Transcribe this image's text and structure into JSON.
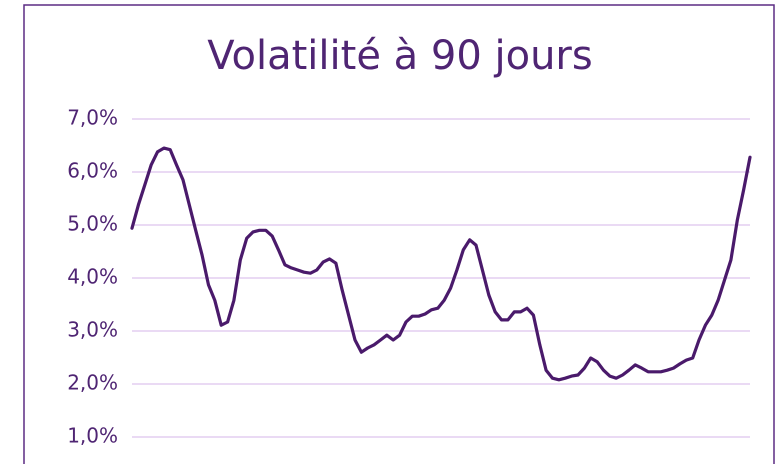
{
  "chart_data": {
    "type": "line",
    "title": "Volatilité à 90 jours",
    "color": "#4a1a6b",
    "grid": true,
    "ylim": [
      0.5,
      7.2
    ],
    "yticks": [
      {
        "value": 1,
        "label": "1,0%"
      },
      {
        "value": 2,
        "label": "2,0%"
      },
      {
        "value": 3,
        "label": "3,0%"
      },
      {
        "value": 4,
        "label": "4,0%"
      },
      {
        "value": 5,
        "label": "5,0%"
      },
      {
        "value": 6,
        "label": "6,0%"
      },
      {
        "value": 7,
        "label": "7,0%"
      }
    ],
    "values": [
      4.94,
      5.38,
      5.75,
      6.13,
      6.38,
      6.45,
      6.42,
      6.13,
      5.85,
      5.38,
      4.9,
      4.43,
      3.87,
      3.58,
      3.11,
      3.17,
      3.58,
      4.34,
      4.75,
      4.87,
      4.9,
      4.9,
      4.79,
      4.53,
      4.25,
      4.19,
      4.15,
      4.11,
      4.09,
      4.15,
      4.3,
      4.36,
      4.28,
      3.77,
      3.3,
      2.83,
      2.6,
      2.68,
      2.74,
      2.83,
      2.92,
      2.83,
      2.92,
      3.17,
      3.28,
      3.28,
      3.32,
      3.4,
      3.43,
      3.58,
      3.81,
      4.15,
      4.53,
      4.72,
      4.62,
      4.15,
      3.68,
      3.36,
      3.21,
      3.21,
      3.36,
      3.36,
      3.43,
      3.3,
      2.74,
      2.26,
      2.11,
      2.08,
      2.11,
      2.15,
      2.17,
      2.3,
      2.49,
      2.42,
      2.26,
      2.15,
      2.11,
      2.17,
      2.26,
      2.36,
      2.3,
      2.23,
      2.23,
      2.23,
      2.26,
      2.3,
      2.38,
      2.45,
      2.49,
      2.83,
      3.11,
      3.3,
      3.58,
      3.96,
      4.34,
      5.09,
      5.66,
      6.28
    ]
  }
}
